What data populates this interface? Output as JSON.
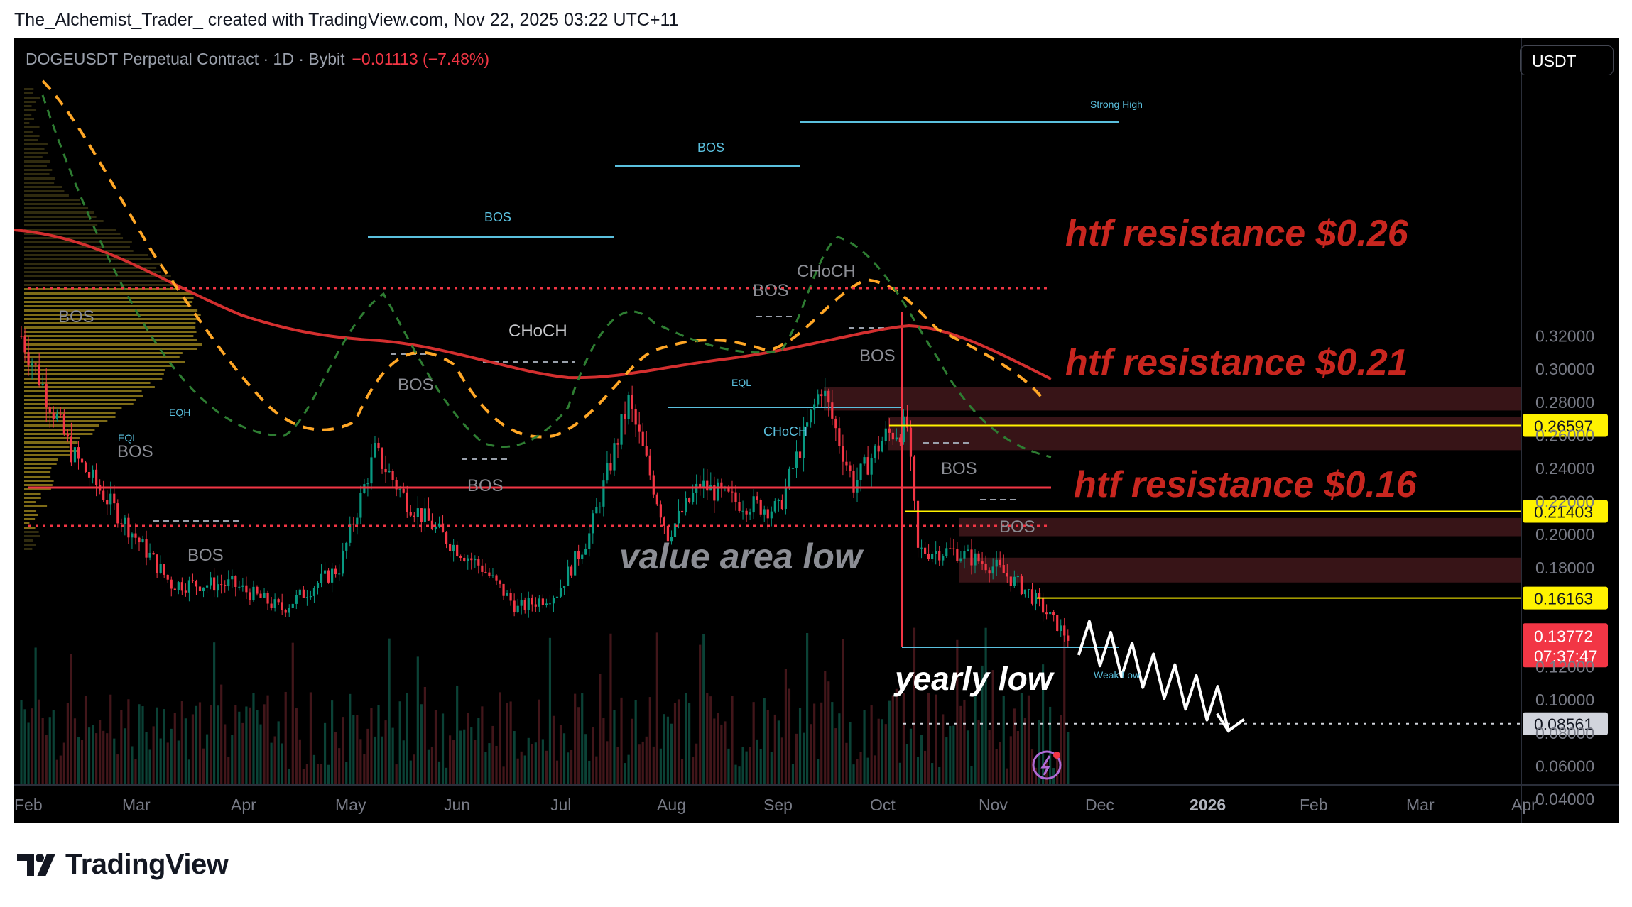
{
  "header": {
    "credit": "The_Alchemist_Trader_ created with TradingView.com, Nov 22, 2025 03:22 UTC+11"
  },
  "symbol": {
    "name": "DOGEUSDT Perpetual Contract · 1D · Bybit",
    "change": "−0.01113 (−7.48%)",
    "currency": "USDT"
  },
  "colors": {
    "background": "#000000",
    "bull": "#089981",
    "bear": "#f23645",
    "resistance_text": "#c8261f",
    "level_line": "#fff200",
    "ma": "#d32f2f",
    "dashed_ma": "#ffa726",
    "structure": "#5bc0de"
  },
  "chart_data": {
    "type": "line",
    "series": [
      {
        "x": [
          "2025-02-01",
          "2025-02-15",
          "2025-03-01",
          "2025-03-15",
          "2025-04-01",
          "2025-04-15",
          "2025-05-01",
          "2025-05-11",
          "2025-05-20",
          "2025-06-01",
          "2025-06-10",
          "2025-06-20",
          "2025-07-01",
          "2025-07-10",
          "2025-07-21",
          "2025-08-01",
          "2025-08-10",
          "2025-08-20",
          "2025-09-01",
          "2025-09-13",
          "2025-09-22",
          "2025-10-01",
          "2025-10-07",
          "2025-10-10",
          "2025-10-20",
          "2025-11-01",
          "2025-11-10",
          "2025-11-21"
        ],
        "values": [
          0.32,
          0.25,
          0.21,
          0.17,
          0.17,
          0.155,
          0.18,
          0.25,
          0.22,
          0.195,
          0.18,
          0.155,
          0.165,
          0.2,
          0.28,
          0.2,
          0.23,
          0.22,
          0.215,
          0.29,
          0.23,
          0.26,
          0.265,
          0.19,
          0.19,
          0.18,
          0.165,
          0.13772
        ]
      }
    ],
    "projection": {
      "x": [
        "2025-11-22",
        "2025-12-01",
        "2025-12-10",
        "2025-12-20"
      ],
      "values": [
        0.14,
        0.125,
        0.11,
        0.08561
      ]
    },
    "ylim": [
      0.035,
      0.33
    ],
    "y_ticks": [
      "0.32000",
      "0.30000",
      "0.28000",
      "0.26000",
      "0.24000",
      "0.22000",
      "0.20000",
      "0.18000",
      "0.12000",
      "0.10000",
      "0.08000",
      "0.06000",
      "0.04000"
    ],
    "x_ticks": [
      "Feb",
      "Mar",
      "Apr",
      "May",
      "Jun",
      "Jul",
      "Aug",
      "Sep",
      "Oct",
      "Nov",
      "Dec",
      "2026",
      "Feb",
      "Mar",
      "Apr"
    ],
    "price_labels": [
      {
        "value": 0.26597,
        "text": "0.26597"
      },
      {
        "value": 0.21403,
        "text": "0.21403"
      },
      {
        "value": 0.16163,
        "text": "0.16163"
      },
      {
        "value": 0.08561,
        "text": "0.08561"
      }
    ],
    "current_price": {
      "value": 0.13772,
      "text": "0.13772",
      "countdown": "07:37:47"
    },
    "zones": [
      {
        "low": 0.275,
        "high": 0.289
      },
      {
        "low": 0.251,
        "high": 0.271
      },
      {
        "low": 0.199,
        "high": 0.21
      },
      {
        "low": 0.171,
        "high": 0.186
      }
    ],
    "annotations": {
      "htf_026": "htf resistance $0.26",
      "htf_021": "htf resistance $0.21",
      "htf_016": "htf resistance $0.16",
      "value_area_low": "value area low",
      "yearly_low": "yearly low",
      "strong_high": "Strong High",
      "weak_low": "Weak Low",
      "bos": "BOS",
      "choch": "CHoCH",
      "eql": "EQL",
      "eqh": "EQH"
    },
    "grid": false
  },
  "footer": {
    "brand": "TradingView"
  }
}
